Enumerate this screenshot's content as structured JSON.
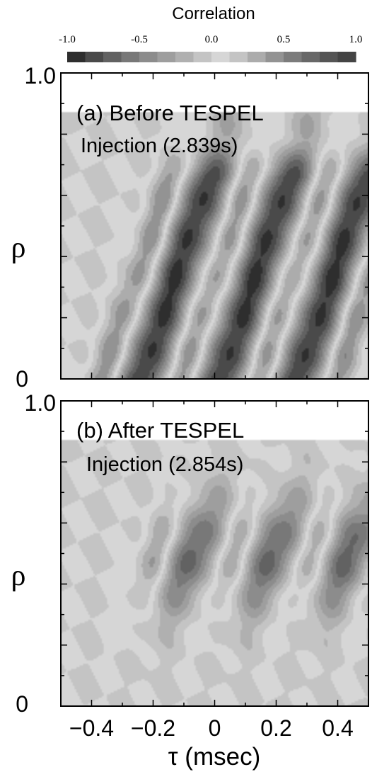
{
  "colorbar": {
    "title": "Correlation",
    "ticks": [
      "-1.0",
      "-0.5",
      "0.0",
      "0.5",
      "1.0"
    ],
    "range": [
      -1.0,
      1.0
    ],
    "colors": [
      "#2e2e2e",
      "#4a4a4a",
      "#626262",
      "#787878",
      "#8c8c8c",
      "#9e9e9e",
      "#b0b0b0",
      "#c4c4c4",
      "#d6d6d6",
      "#c4c4c4",
      "#acacac",
      "#939393",
      "#7c7c7c",
      "#686868",
      "#555555",
      "#444444"
    ]
  },
  "chart_data": [
    {
      "type": "heatmap",
      "title": "(a) Before TESPEL",
      "subtitle": "Injection (2.839s)",
      "xlabel": "τ (msec)",
      "ylabel": "ρ",
      "xlim": [
        -0.5,
        0.5
      ],
      "ylim": [
        0,
        1.0
      ],
      "y_data_max": 0.87,
      "y_tick_labels": [
        "1.0",
        "0"
      ],
      "x_tick_labels": [],
      "colorscale_range": [
        -1.0,
        1.0
      ],
      "pattern": {
        "stripes_negative_tau_at_rho0": [
          -0.24,
          0.02,
          0.27
        ],
        "stripes_positive_tau_at_rho0": [
          -0.36,
          -0.11,
          0.14,
          0.39
        ],
        "slope_tau_per_rho": 0.34,
        "period_msec": 0.25,
        "peak_correlation": 0.9
      }
    },
    {
      "type": "heatmap",
      "title": "(b) After TESPEL",
      "subtitle": "Injection (2.854s)",
      "xlabel": "τ (msec)",
      "ylabel": "ρ",
      "xlim": [
        -0.5,
        0.5
      ],
      "ylim": [
        0,
        1.0
      ],
      "y_data_max": 0.87,
      "y_tick_labels": [
        "1.0",
        "0"
      ],
      "x_tick_labels": [
        "-0.4",
        "-0.2",
        "0",
        "0.2",
        "0.4"
      ],
      "colorscale_range": [
        -1.0,
        1.0
      ],
      "pattern": {
        "stripes_negative_tau_at_rho0": [
          -0.24,
          0.02,
          0.27
        ],
        "stripes_positive_tau_at_rho0": [
          -0.36,
          -0.11,
          0.14,
          0.39
        ],
        "slope_tau_per_rho": 0.34,
        "period_msec": 0.25,
        "peak_correlation": 0.7,
        "band_rho": [
          0.3,
          0.7
        ]
      }
    }
  ]
}
